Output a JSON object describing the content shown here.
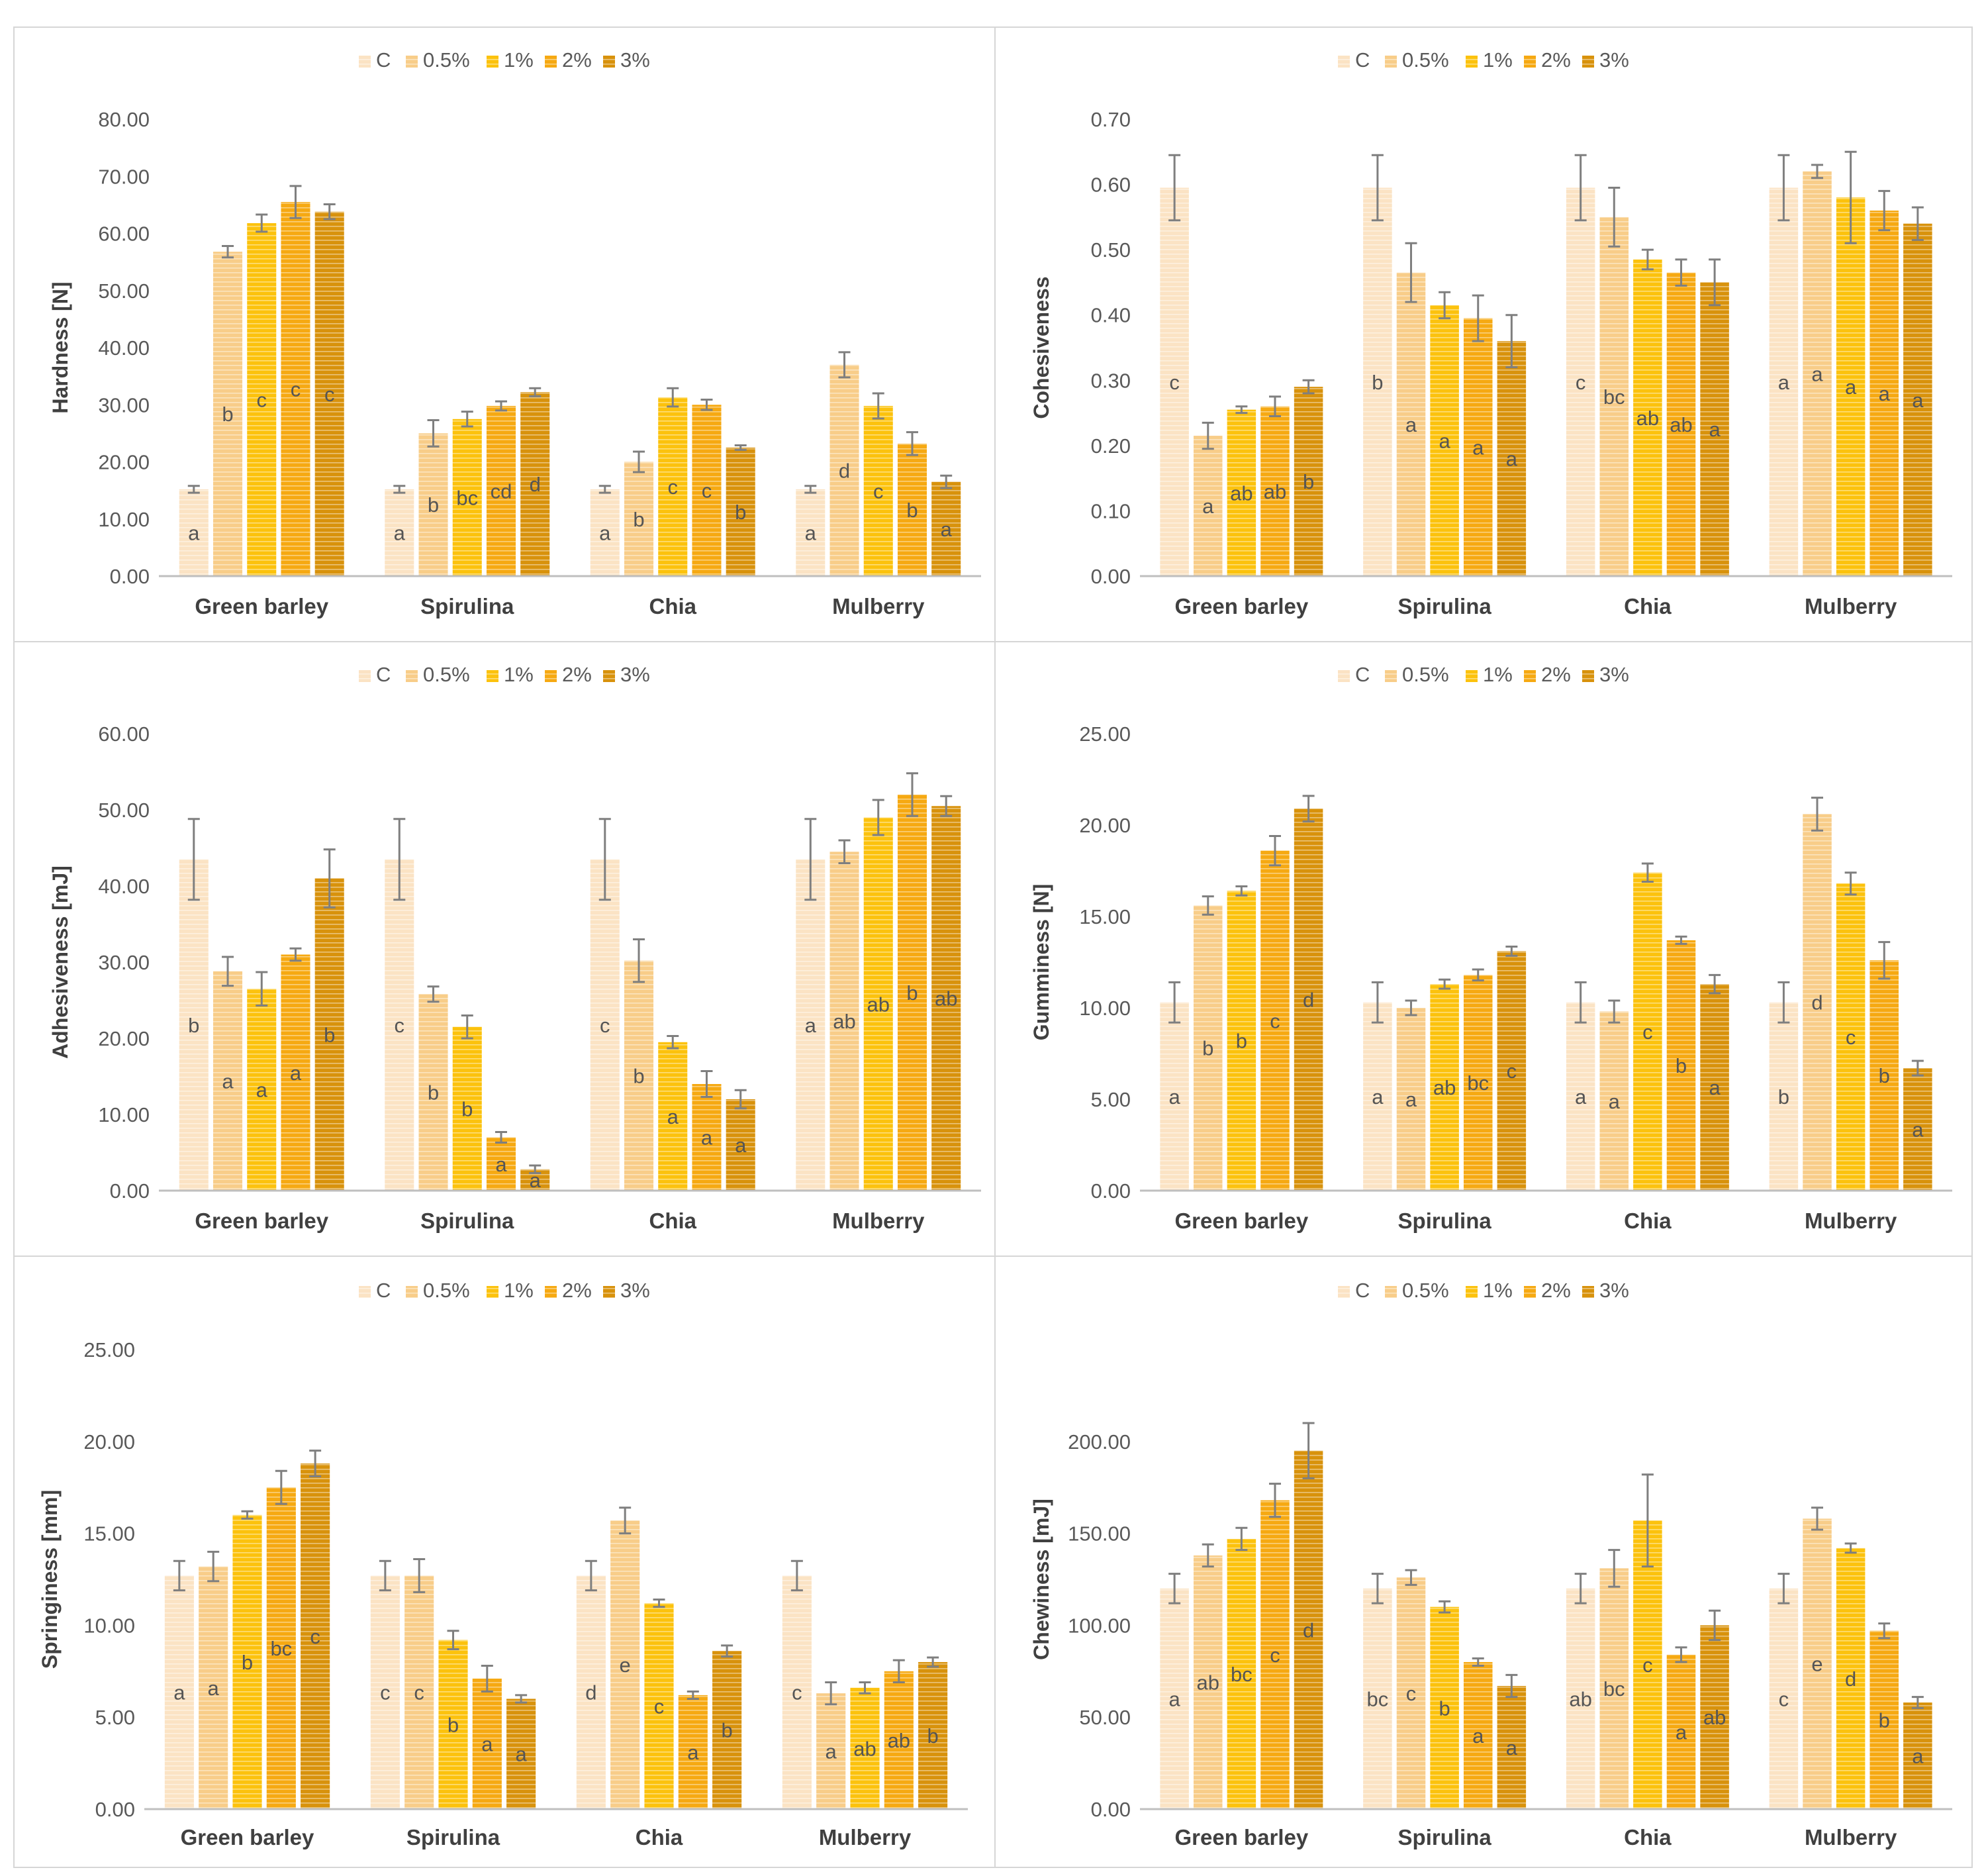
{
  "colors": {
    "series": [
      "#fbe3c4",
      "#f8cd89",
      "#fcc20d",
      "#f6a912",
      "#d8920c"
    ],
    "axis": "#bfbfbf",
    "tick_text": "#595959",
    "axis_title": "#404040",
    "error_bar": "#7f7f7f",
    "letter": "#555555",
    "panel_border": "#d6d6d6",
    "hatch_line": "#ffffff"
  },
  "chart_data": [
    {
      "type": "bar",
      "title": "",
      "xlabel": "",
      "ylabel": "Hardness [N]",
      "categories": [
        "Green barley",
        "Spirulina",
        "Chia",
        "Mulberry"
      ],
      "ylim": [
        0,
        80
      ],
      "yticks": [
        "0.00",
        "10.00",
        "20.00",
        "30.00",
        "40.00",
        "50.00",
        "60.00",
        "70.00",
        "80.00"
      ],
      "legend": "top-center",
      "grid": false,
      "series": [
        {
          "name": "C",
          "values": [
            15.2,
            15.2,
            15.2,
            15.2
          ],
          "errors": [
            0.6,
            0.6,
            0.6,
            0.6
          ],
          "letters": [
            "a",
            "a",
            "a",
            "a"
          ]
        },
        {
          "name": "0.5%",
          "values": [
            56.8,
            25.0,
            20.0,
            37.0
          ],
          "errors": [
            1.0,
            2.3,
            1.8,
            2.2
          ],
          "letters": [
            "b",
            "b",
            "b",
            "d"
          ]
        },
        {
          "name": "1%",
          "values": [
            61.8,
            27.5,
            31.3,
            29.8
          ],
          "errors": [
            1.5,
            1.3,
            1.6,
            2.2
          ],
          "letters": [
            "c",
            "bc",
            "c",
            "c"
          ]
        },
        {
          "name": "2%",
          "values": [
            65.5,
            29.8,
            30.0,
            23.2
          ],
          "errors": [
            2.8,
            0.8,
            0.9,
            2.0
          ],
          "letters": [
            "c",
            "cd",
            "c",
            "b"
          ]
        },
        {
          "name": "3%",
          "values": [
            63.8,
            32.2,
            22.5,
            16.5
          ],
          "errors": [
            1.3,
            0.7,
            0.4,
            1.1
          ],
          "letters": [
            "c",
            "d",
            "b",
            "a"
          ]
        }
      ]
    },
    {
      "type": "bar",
      "title": "",
      "xlabel": "",
      "ylabel": "Cohesiveness",
      "categories": [
        "Green barley",
        "Spirulina",
        "Chia",
        "Mulberry"
      ],
      "ylim": [
        0,
        0.7
      ],
      "yticks": [
        "0.00",
        "0.10",
        "0.20",
        "0.30",
        "0.40",
        "0.50",
        "0.60",
        "0.70"
      ],
      "legend": "top-center",
      "grid": false,
      "series": [
        {
          "name": "C",
          "values": [
            0.595,
            0.595,
            0.595,
            0.595
          ],
          "errors": [
            0.05,
            0.05,
            0.05,
            0.05
          ],
          "letters": [
            "c",
            "b",
            "c",
            "a"
          ]
        },
        {
          "name": "0.5%",
          "values": [
            0.215,
            0.465,
            0.55,
            0.62
          ],
          "errors": [
            0.02,
            0.045,
            0.045,
            0.01
          ],
          "letters": [
            "a",
            "a",
            "bc",
            "a"
          ]
        },
        {
          "name": "1%",
          "values": [
            0.255,
            0.415,
            0.485,
            0.58
          ],
          "errors": [
            0.005,
            0.02,
            0.015,
            0.07
          ],
          "letters": [
            "ab",
            "a",
            "ab",
            "a"
          ]
        },
        {
          "name": "2%",
          "values": [
            0.26,
            0.395,
            0.465,
            0.56
          ],
          "errors": [
            0.015,
            0.035,
            0.02,
            0.03
          ],
          "letters": [
            "ab",
            "a",
            "ab",
            "a"
          ]
        },
        {
          "name": "3%",
          "values": [
            0.29,
            0.36,
            0.45,
            0.54
          ],
          "errors": [
            0.01,
            0.04,
            0.035,
            0.025
          ],
          "letters": [
            "b",
            "a",
            "a",
            "a"
          ]
        }
      ]
    },
    {
      "type": "bar",
      "title": "",
      "xlabel": "",
      "ylabel": "Adhesiveness [mJ]",
      "categories": [
        "Green barley",
        "Spirulina",
        "Chia",
        "Mulberry"
      ],
      "ylim": [
        0,
        60
      ],
      "yticks": [
        "0.00",
        "10.00",
        "20.00",
        "30.00",
        "40.00",
        "50.00",
        "60.00"
      ],
      "legend": "top-center",
      "grid": false,
      "series": [
        {
          "name": "C",
          "values": [
            43.5,
            43.5,
            43.5,
            43.5
          ],
          "errors": [
            5.3,
            5.3,
            5.3,
            5.3
          ],
          "letters": [
            "b",
            "c",
            "c",
            "a"
          ]
        },
        {
          "name": "0.5%",
          "values": [
            28.8,
            25.8,
            30.2,
            44.5
          ],
          "errors": [
            1.9,
            1.0,
            2.8,
            1.5
          ],
          "letters": [
            "a",
            "b",
            "b",
            "ab"
          ]
        },
        {
          "name": "1%",
          "values": [
            26.5,
            21.5,
            19.5,
            49.0
          ],
          "errors": [
            2.2,
            1.5,
            0.8,
            2.3
          ],
          "letters": [
            "a",
            "b",
            "a",
            "ab"
          ]
        },
        {
          "name": "2%",
          "values": [
            31.0,
            7.0,
            14.0,
            52.0
          ],
          "errors": [
            0.8,
            0.7,
            1.7,
            2.8
          ],
          "letters": [
            "a",
            "a",
            "a",
            "b"
          ]
        },
        {
          "name": "3%",
          "values": [
            41.0,
            2.8,
            12.0,
            50.5
          ],
          "errors": [
            3.8,
            0.5,
            1.2,
            1.3
          ],
          "letters": [
            "b",
            "a",
            "a",
            "ab"
          ]
        }
      ]
    },
    {
      "type": "bar",
      "title": "",
      "xlabel": "",
      "ylabel": "Gumminess [N]",
      "categories": [
        "Green barley",
        "Spirulina",
        "Chia",
        "Mulberry"
      ],
      "ylim": [
        0,
        25
      ],
      "yticks": [
        "0.00",
        "5.00",
        "10.00",
        "15.00",
        "20.00",
        "25.00"
      ],
      "legend": "top-center",
      "grid": false,
      "series": [
        {
          "name": "C",
          "values": [
            10.3,
            10.3,
            10.3,
            10.3
          ],
          "errors": [
            1.1,
            1.1,
            1.1,
            1.1
          ],
          "letters": [
            "a",
            "a",
            "a",
            "b"
          ]
        },
        {
          "name": "0.5%",
          "values": [
            15.6,
            10.0,
            9.8,
            20.6
          ],
          "errors": [
            0.5,
            0.4,
            0.6,
            0.9
          ],
          "letters": [
            "b",
            "a",
            "a",
            "d"
          ]
        },
        {
          "name": "1%",
          "values": [
            16.4,
            11.3,
            17.4,
            16.8
          ],
          "errors": [
            0.25,
            0.25,
            0.5,
            0.6
          ],
          "letters": [
            "b",
            "ab",
            "c",
            "c"
          ]
        },
        {
          "name": "2%",
          "values": [
            18.6,
            11.8,
            13.7,
            12.6
          ],
          "errors": [
            0.8,
            0.3,
            0.2,
            1.0
          ],
          "letters": [
            "c",
            "bc",
            "b",
            "b"
          ]
        },
        {
          "name": "3%",
          "values": [
            20.9,
            13.1,
            11.3,
            6.7
          ],
          "errors": [
            0.7,
            0.25,
            0.5,
            0.4
          ],
          "letters": [
            "d",
            "c",
            "a",
            "a"
          ]
        }
      ]
    },
    {
      "type": "bar",
      "title": "",
      "xlabel": "",
      "ylabel": "Springiness [mm]",
      "categories": [
        "Green barley",
        "Spirulina",
        "Chia",
        "Mulberry"
      ],
      "ylim": [
        0,
        25
      ],
      "yticks": [
        "0.00",
        "5.00",
        "10.00",
        "15.00",
        "20.00",
        "25.00"
      ],
      "legend": "top-center",
      "grid": false,
      "series": [
        {
          "name": "C",
          "values": [
            12.7,
            12.7,
            12.7,
            12.7
          ],
          "errors": [
            0.8,
            0.8,
            0.8,
            0.8
          ],
          "letters": [
            "a",
            "c",
            "d",
            "c"
          ]
        },
        {
          "name": "0.5%",
          "values": [
            13.2,
            12.7,
            15.7,
            6.3
          ],
          "errors": [
            0.8,
            0.9,
            0.7,
            0.6
          ],
          "letters": [
            "a",
            "c",
            "e",
            "a"
          ]
        },
        {
          "name": "1%",
          "values": [
            16.0,
            9.2,
            11.2,
            6.6
          ],
          "errors": [
            0.2,
            0.5,
            0.2,
            0.3
          ],
          "letters": [
            "b",
            "b",
            "c",
            "ab"
          ]
        },
        {
          "name": "2%",
          "values": [
            17.5,
            7.1,
            6.2,
            7.5
          ],
          "errors": [
            0.9,
            0.7,
            0.2,
            0.6
          ],
          "letters": [
            "bc",
            "a",
            "a",
            "ab"
          ]
        },
        {
          "name": "3%",
          "values": [
            18.8,
            6.0,
            8.6,
            8.0
          ],
          "errors": [
            0.7,
            0.2,
            0.3,
            0.25
          ],
          "letters": [
            "c",
            "a",
            "b",
            "b"
          ]
        }
      ]
    },
    {
      "type": "bar",
      "title": "",
      "xlabel": "",
      "ylabel": "Chewiness [mJ]",
      "categories": [
        "Green barley",
        "Spirulina",
        "Chia",
        "Mulberry"
      ],
      "ylim": [
        0,
        250
      ],
      "yticks": [
        "0.00",
        "50.00",
        "100.00",
        "150.00",
        "200.00"
      ],
      "legend": "top-center",
      "grid": false,
      "series": [
        {
          "name": "C",
          "values": [
            120,
            120,
            120,
            120
          ],
          "errors": [
            8,
            8,
            8,
            8
          ],
          "letters": [
            "a",
            "bc",
            "ab",
            "c"
          ]
        },
        {
          "name": "0.5%",
          "values": [
            138,
            126,
            131,
            158
          ],
          "errors": [
            6,
            4,
            10,
            6
          ],
          "letters": [
            "ab",
            "c",
            "bc",
            "e"
          ]
        },
        {
          "name": "1%",
          "values": [
            147,
            110,
            157,
            142
          ],
          "errors": [
            6,
            3,
            25,
            2.5
          ],
          "letters": [
            "bc",
            "b",
            "c",
            "d"
          ]
        },
        {
          "name": "2%",
          "values": [
            168,
            80,
            84,
            97
          ],
          "errors": [
            9,
            2,
            4,
            4
          ],
          "letters": [
            "c",
            "a",
            "a",
            "b"
          ]
        },
        {
          "name": "3%",
          "values": [
            195,
            67,
            100,
            58
          ],
          "errors": [
            15,
            6,
            8,
            3
          ],
          "letters": [
            "d",
            "a",
            "ab",
            "a"
          ]
        }
      ]
    }
  ]
}
